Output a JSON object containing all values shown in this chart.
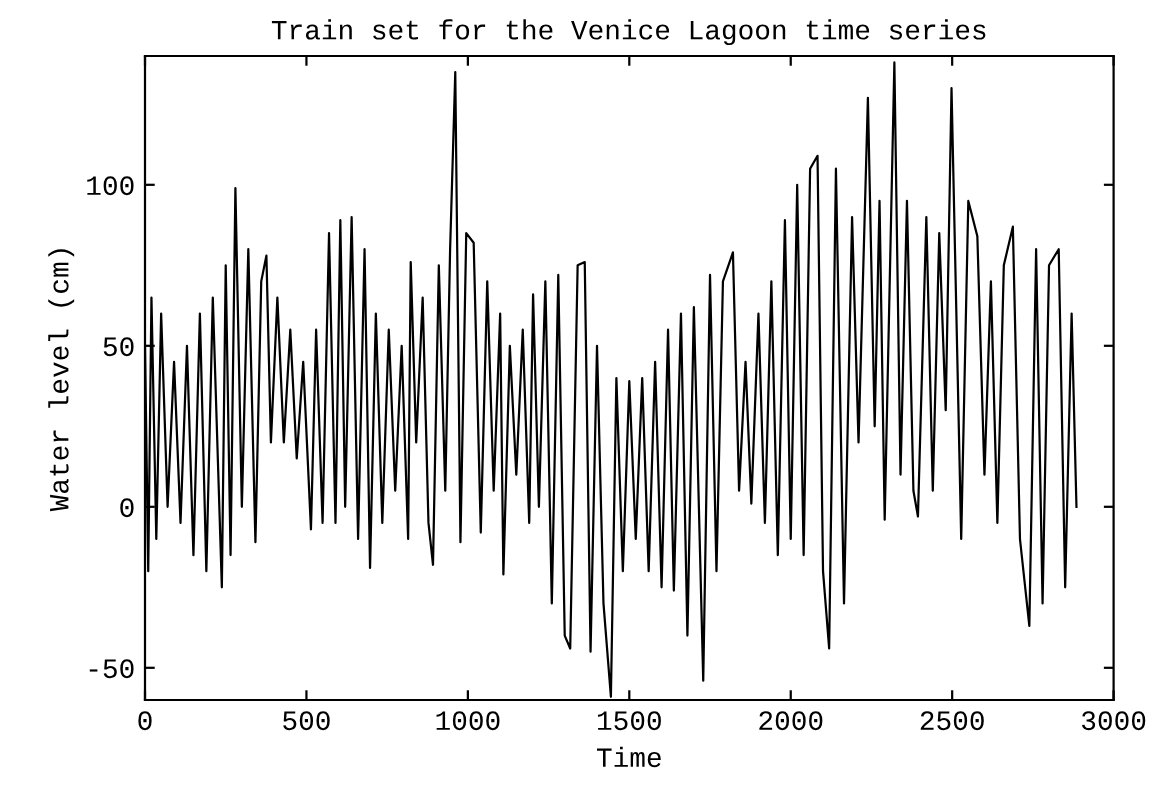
{
  "chart_data": {
    "type": "line",
    "title": "Train set for the Venice Lagoon time series",
    "xlabel": "Time",
    "ylabel": "Water level (cm)",
    "xlim": [
      0,
      3000
    ],
    "xticks": [
      0,
      500,
      1000,
      1500,
      2000,
      2500,
      3000
    ],
    "ylim": [
      -60,
      140
    ],
    "yticks": [
      -50,
      0,
      50,
      100
    ],
    "grid": false,
    "legend": false,
    "marker": "none",
    "line_style": "solid",
    "series": [
      {
        "color": "#000000",
        "x": [
          0,
          10,
          20,
          35,
          50,
          70,
          90,
          110,
          130,
          150,
          170,
          190,
          210,
          238,
          250,
          265,
          280,
          300,
          320,
          342,
          360,
          376,
          390,
          410,
          430,
          450,
          470,
          490,
          514,
          530,
          550,
          570,
          590,
          605,
          620,
          640,
          660,
          680,
          697,
          715,
          735,
          755,
          775,
          795,
          815,
          823,
          840,
          860,
          878,
          892,
          910,
          930,
          945,
          961,
          977,
          995,
          1018,
          1040,
          1060,
          1080,
          1100,
          1110,
          1130,
          1150,
          1170,
          1190,
          1202,
          1220,
          1240,
          1260,
          1280,
          1300,
          1317,
          1340,
          1362,
          1380,
          1400,
          1420,
          1443,
          1460,
          1480,
          1500,
          1520,
          1540,
          1560,
          1580,
          1600,
          1620,
          1638,
          1660,
          1680,
          1700,
          1729,
          1750,
          1770,
          1790,
          1821,
          1840,
          1860,
          1878,
          1900,
          1920,
          1940,
          1960,
          1982,
          2000,
          2020,
          2040,
          2060,
          2083,
          2100,
          2119,
          2140,
          2165,
          2190,
          2210,
          2239,
          2260,
          2275,
          2291,
          2321,
          2340,
          2360,
          2380,
          2394,
          2420,
          2440,
          2460,
          2480,
          2498,
          2528,
          2550,
          2578,
          2600,
          2620,
          2640,
          2660,
          2688,
          2710,
          2739,
          2760,
          2780,
          2800,
          2830,
          2850,
          2870,
          2885
        ],
        "values": [
          50,
          -20,
          65,
          -10,
          60,
          0,
          45,
          -5,
          50,
          -15,
          60,
          -20,
          65,
          -25,
          75,
          -15,
          99,
          0,
          80,
          -11,
          70,
          78,
          20,
          65,
          20,
          55,
          15,
          45,
          -7,
          55,
          -5,
          85,
          -5,
          89,
          0,
          90,
          -10,
          80,
          -19,
          60,
          -5,
          55,
          5,
          50,
          -10,
          76,
          20,
          65,
          -5,
          -18,
          75,
          5,
          80,
          135,
          -11,
          85,
          82,
          -8,
          70,
          5,
          60,
          -21,
          50,
          10,
          55,
          -5,
          66,
          0,
          70,
          -30,
          72,
          -40,
          -44,
          75,
          76,
          -45,
          50,
          -30,
          -59,
          40,
          -20,
          39,
          -10,
          40,
          -20,
          45,
          -25,
          55,
          -26,
          60,
          -40,
          62,
          -54,
          72,
          -20,
          70,
          79,
          5,
          45,
          1,
          60,
          -5,
          70,
          -15,
          89,
          -10,
          100,
          -15,
          105,
          109,
          -20,
          -44,
          105,
          -30,
          90,
          20,
          127,
          25,
          95,
          -4,
          138,
          10,
          95,
          5,
          -3,
          90,
          5,
          85,
          30,
          130,
          -10,
          95,
          84,
          10,
          70,
          -5,
          75,
          87,
          -10,
          -37,
          80,
          -30,
          75,
          80,
          -25,
          60,
          0
        ]
      }
    ]
  }
}
